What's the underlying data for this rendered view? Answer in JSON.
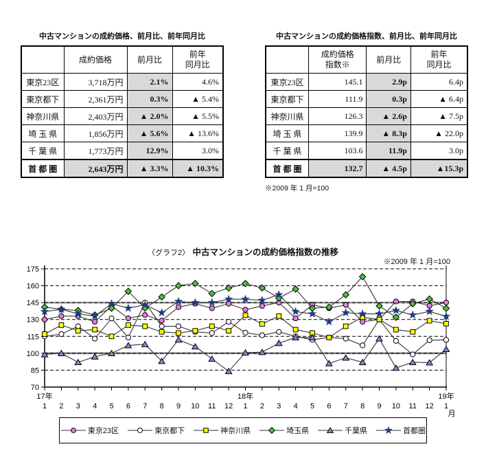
{
  "left_table": {
    "title": "中古マンションの成約価格、前月比、前年同月比",
    "headers": [
      "",
      "成約価格",
      "前月比",
      "前年\n同月比"
    ],
    "rows": [
      {
        "label": "東京23区",
        "values": [
          "3,718万円",
          "2.1%",
          "4.6%"
        ],
        "total": false
      },
      {
        "label": "東京都下",
        "values": [
          "2,361万円",
          "0.3%",
          "▲ 5.4%"
        ],
        "total": false
      },
      {
        "label": "神奈川県",
        "values": [
          "2,403万円",
          "▲ 2.0%",
          "▲ 5.5%"
        ],
        "total": false
      },
      {
        "label": "埼 玉 県",
        "values": [
          "1,856万円",
          "▲ 5.6%",
          "▲ 13.6%"
        ],
        "total": false
      },
      {
        "label": "千 葉 県",
        "values": [
          "1,773万円",
          "12.9%",
          "3.0%"
        ],
        "total": false
      },
      {
        "label": "首 都 圏",
        "values": [
          "2,643万円",
          "▲ 3.3%",
          "▲ 10.3%"
        ],
        "total": true
      }
    ]
  },
  "right_table": {
    "title": "中古マンションの成約価格指数、前月比、前年同月比",
    "headers": [
      "",
      "成約価格\n指数※",
      "前月比",
      "前年\n同月比"
    ],
    "rows": [
      {
        "label": "東京23区",
        "values": [
          "145.1",
          "2.9p",
          "6.4p"
        ],
        "total": false
      },
      {
        "label": "東京都下",
        "values": [
          "111.9",
          "0.3p",
          "▲ 6.4p"
        ],
        "total": false
      },
      {
        "label": "神奈川県",
        "values": [
          "126.3",
          "▲ 2.6p",
          "▲ 7.5p"
        ],
        "total": false
      },
      {
        "label": "埼 玉 県",
        "values": [
          "139.9",
          "▲ 8.3p",
          "▲ 22.0p"
        ],
        "total": false
      },
      {
        "label": "千 葉 県",
        "values": [
          "103.6",
          "11.9p",
          "3.0p"
        ],
        "total": false
      },
      {
        "label": "首 都 圏",
        "values": [
          "132.7",
          "▲ 4.5p",
          "▲15.3p"
        ],
        "total": true
      }
    ],
    "note": "※2009 年 1 月=100"
  },
  "chart_data": {
    "type": "line",
    "title_prefix": "〈グラフ2〉",
    "title": "中古マンションの成約価格指数の推移",
    "note": "※2009 年 1 月=100",
    "ylim": [
      70,
      175
    ],
    "yticks": [
      175,
      160,
      145,
      130,
      115,
      100,
      85,
      70
    ],
    "emphasized_gridlines": [
      145,
      100
    ],
    "grid": true,
    "legend_position": "bottom",
    "x_month_labels": [
      "1",
      "2",
      "3",
      "4",
      "5",
      "6",
      "7",
      "8",
      "9",
      "10",
      "11",
      "12",
      "1",
      "2",
      "3",
      "4",
      "5",
      "6",
      "7",
      "8",
      "9",
      "10",
      "11",
      "12",
      "1"
    ],
    "year_marks": [
      {
        "month_index": 0,
        "label": "17年"
      },
      {
        "month_index": 12,
        "label": "18年"
      },
      {
        "month_index": 24,
        "label": "19年"
      }
    ],
    "x_unit_label": "月",
    "series": [
      {
        "name": "東京23区",
        "name_en": "tokyo23",
        "marker": "circle",
        "color": "#E57DE0",
        "values": [
          130,
          133,
          133,
          128,
          142,
          131,
          134,
          129,
          141,
          144,
          140,
          144,
          138.7,
          142,
          145,
          131,
          143,
          140,
          143,
          128,
          130,
          146,
          146,
          142.2,
          145.1
        ]
      },
      {
        "name": "東京都下",
        "name_en": "tokyo-toka",
        "marker": "circle",
        "color": "#FFFFFF",
        "values": [
          115,
          117,
          124,
          113,
          131,
          114,
          145,
          124,
          124,
          119,
          118,
          128,
          118.3,
          116,
          119,
          115,
          112,
          114,
          113,
          107,
          130,
          111,
          99,
          111.6,
          111.9
        ]
      },
      {
        "name": "神奈川県",
        "name_en": "kanagawa",
        "marker": "square",
        "color": "#FFFF00",
        "values": [
          117,
          125,
          120,
          121,
          115,
          125,
          124,
          119,
          118,
          120,
          124,
          120,
          133.8,
          126,
          133,
          121,
          118,
          114,
          124,
          132,
          130,
          121,
          119,
          128.9,
          126.3
        ]
      },
      {
        "name": "埼玉県",
        "name_en": "saitama",
        "marker": "diamond",
        "color": "#44C43C",
        "values": [
          141,
          139,
          138,
          134,
          140,
          155,
          140,
          150,
          160,
          162,
          153,
          158,
          161.9,
          158,
          149,
          157,
          140,
          141,
          152,
          168,
          142,
          132,
          144,
          148.2,
          139.9
        ]
      },
      {
        "name": "千葉県",
        "name_en": "chiba",
        "marker": "triangle",
        "color": "#7390CE",
        "values": [
          99,
          100,
          92,
          97,
          100,
          107,
          108,
          93,
          112,
          106,
          95,
          84,
          100.6,
          101,
          109,
          114,
          114,
          91,
          96,
          92,
          113,
          87,
          92,
          91.7,
          103.6
        ]
      },
      {
        "name": "首都圏",
        "name_en": "shutoken",
        "marker": "star",
        "color": "#22397E",
        "values": [
          137,
          139,
          135,
          133,
          144,
          140,
          143,
          136,
          146,
          145,
          145,
          148,
          148,
          147,
          152,
          137,
          135,
          128,
          136,
          135,
          135,
          138,
          134,
          137.2,
          132.7
        ]
      }
    ]
  }
}
